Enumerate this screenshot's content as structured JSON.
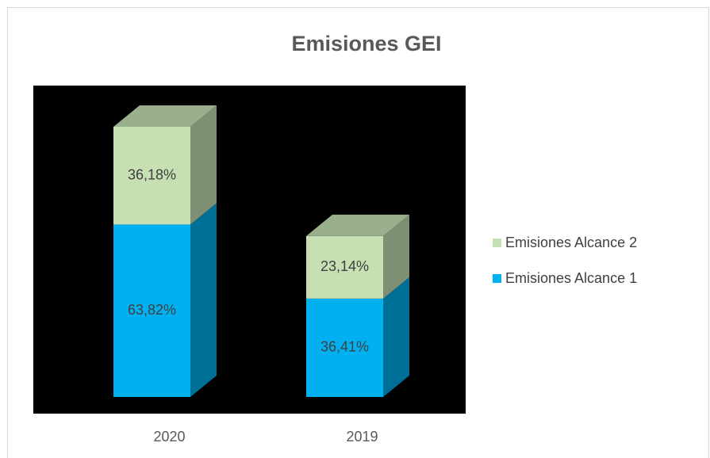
{
  "chart_data": {
    "type": "bar3d_stacked",
    "title": "Emisiones GEI",
    "categories": [
      "2020",
      "2019"
    ],
    "series": [
      {
        "name": "Emisiones Alcance 1",
        "color": "#00b0f0",
        "values": [
          63.82,
          36.41
        ],
        "value_labels": [
          "63,82%",
          "36,41%"
        ]
      },
      {
        "name": "Emisiones Alcance 2",
        "color": "#c6e0b4",
        "values": [
          36.18,
          23.14
        ],
        "value_labels": [
          "36,18%",
          "23,14%"
        ]
      }
    ],
    "legend": "right"
  }
}
